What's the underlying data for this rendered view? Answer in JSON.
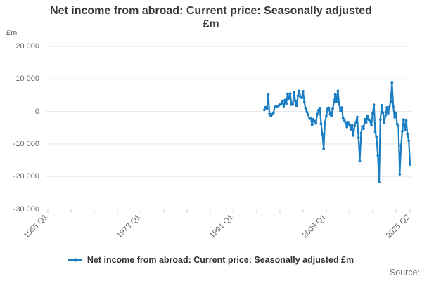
{
  "header": {
    "line1": "Net income from abroad: Current price: Seasonally adjusted",
    "line2": "£m"
  },
  "y_axis": {
    "unit_label": "£m",
    "ticks": [
      {
        "label": "20 000",
        "value": 20000
      },
      {
        "label": "10 000",
        "value": 10000
      },
      {
        "label": "0",
        "value": 0
      },
      {
        "label": "-10 000",
        "value": -10000
      },
      {
        "label": "-20 000",
        "value": -20000
      },
      {
        "label": "-30 000",
        "value": -30000
      }
    ]
  },
  "x_axis": {
    "major_ticks": [
      {
        "label": "1955 Q1",
        "quarter": 0
      },
      {
        "label": "1973 Q1",
        "quarter": 72
      },
      {
        "label": "1991 Q1",
        "quarter": 144
      },
      {
        "label": "2009 Q1",
        "quarter": 216
      },
      {
        "label": "2025 Q2",
        "quarter": 281
      }
    ],
    "minor_tick_step_quarters": 18,
    "total_quarters": 281
  },
  "legend": {
    "label": "Net income from abroad: Current price: Seasonally adjusted £m"
  },
  "source": {
    "label": "Source:"
  },
  "colors": {
    "line": "#1b7ec3",
    "grid": "#e6e6e6",
    "axis": "#c8d4e3",
    "tick_text": "#666666",
    "title_text": "#3a3a3a"
  },
  "chart_data": {
    "type": "line",
    "title": "Net income from abroad: Current price: Seasonally adjusted £m",
    "ylabel": "£m",
    "frequency": "quarterly",
    "x_start": "1997 Q1",
    "x_end": "2025 Q2",
    "start_quarter_offset": 168,
    "ylim": [
      -30000,
      21000
    ],
    "xlim_labels": [
      "1955 Q1",
      "2025 Q2"
    ],
    "grid": true,
    "legend_position": "bottom",
    "values": [
      500,
      1300,
      900,
      5200,
      -800,
      -1400,
      -900,
      -500,
      1300,
      1600,
      1400,
      1800,
      2100,
      2400,
      3200,
      1400,
      3500,
      2400,
      5400,
      4000,
      5500,
      2100,
      2200,
      5900,
      3100,
      1600,
      4800,
      6300,
      4500,
      4200,
      6200,
      2800,
      900,
      -200,
      -1000,
      -2200,
      -2000,
      -4100,
      -2400,
      -3000,
      -3700,
      -900,
      400,
      1000,
      -3800,
      -7000,
      -11500,
      -3400,
      -1500,
      750,
      1100,
      -900,
      -1400,
      800,
      2900,
      5200,
      3000,
      6300,
      2200,
      150,
      1200,
      -2000,
      -2700,
      -3400,
      -4800,
      -3300,
      -4100,
      -5500,
      -4200,
      -7400,
      -4500,
      -3400,
      -1700,
      -8100,
      -15300,
      -6700,
      -4600,
      -5300,
      -2400,
      -3350,
      -1300,
      -2500,
      -3000,
      -4300,
      -670,
      2000,
      -6300,
      -7900,
      -13500,
      -21600,
      -2500,
      1900,
      -400,
      -3370,
      -1200,
      1200,
      -570,
      1350,
      3010,
      8800,
      1400,
      -1800,
      -400,
      -3900,
      -4500,
      -19300,
      -10500,
      -6100,
      -2500,
      -5700,
      -2800,
      -7000,
      -9000,
      -16300
    ]
  }
}
